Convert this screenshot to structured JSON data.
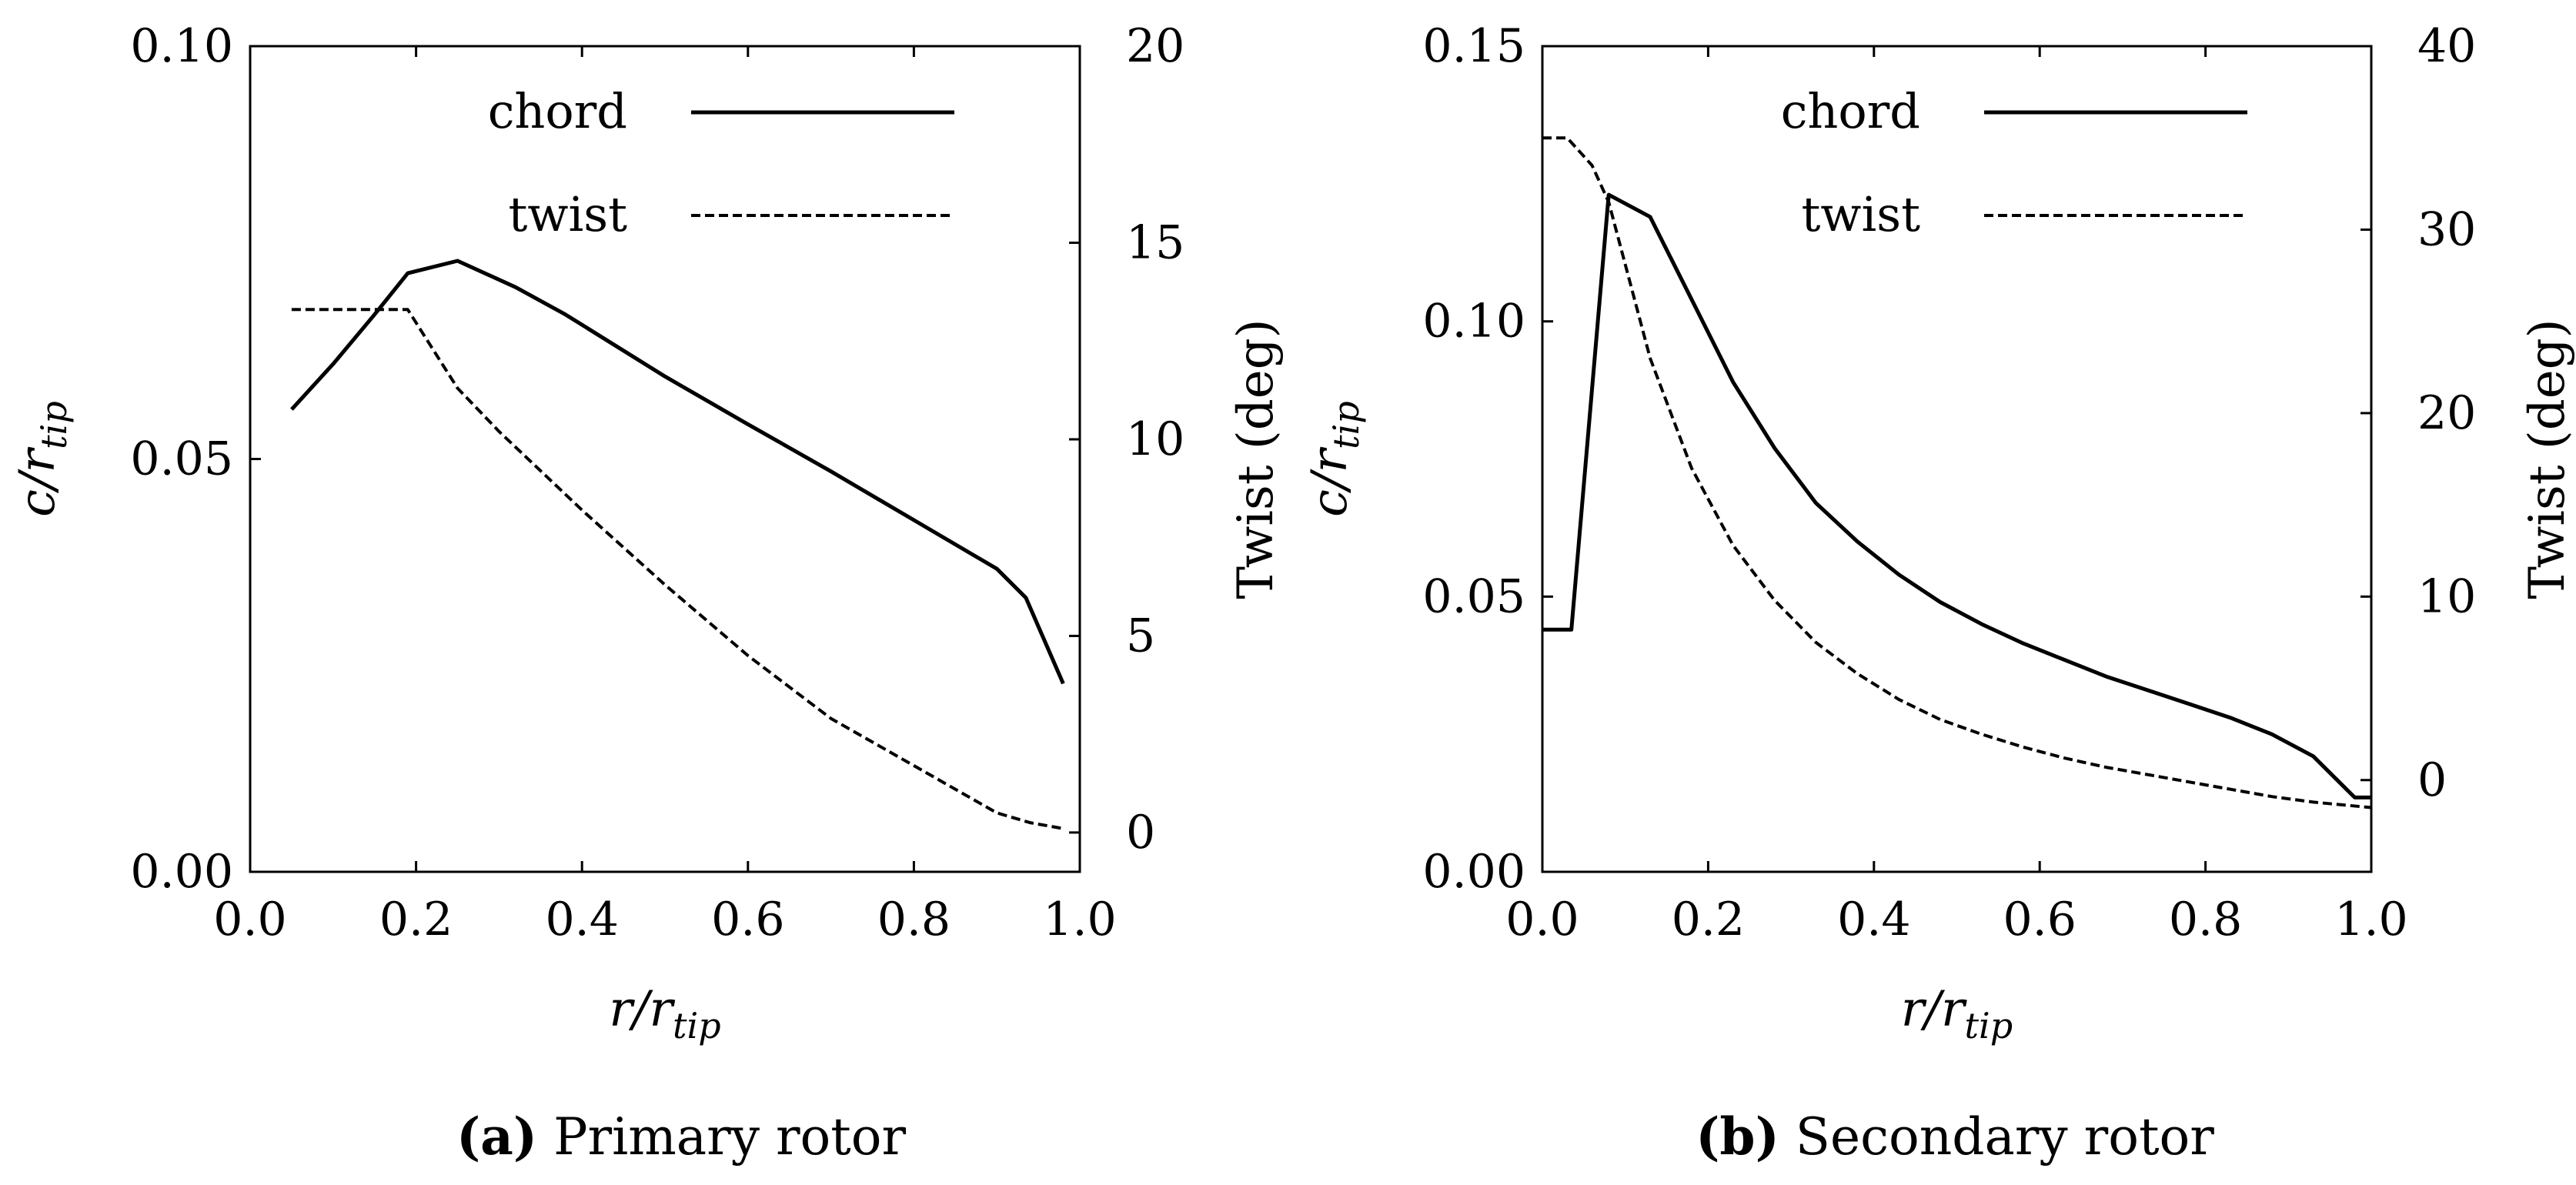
{
  "chart_data": [
    {
      "type": "line",
      "caption_tag": "(a)",
      "caption_text": "Primary rotor",
      "xlabel": "r/r_tip",
      "ylabel": "c/r_tip",
      "y2label": "Twist (deg)",
      "xlim": [
        0.0,
        1.0
      ],
      "ylim": [
        0.0,
        0.1
      ],
      "y2lim": [
        -1,
        20
      ],
      "xticks": [
        "0.0",
        "0.2",
        "0.4",
        "0.6",
        "0.8",
        "1.0"
      ],
      "yticks": [
        "0.00",
        "0.05",
        "0.10"
      ],
      "y2ticks": [
        "0",
        "5",
        "10",
        "15",
        "20"
      ],
      "legend_position": "top-right",
      "series": [
        {
          "name": "chord",
          "axis": "left",
          "style": "solid",
          "x": [
            0.05,
            0.1,
            0.15,
            0.19,
            0.25,
            0.32,
            0.38,
            0.5,
            0.6,
            0.7,
            0.8,
            0.9,
            0.935,
            0.98
          ],
          "y": [
            0.056,
            0.0615,
            0.0675,
            0.0725,
            0.074,
            0.0708,
            0.0675,
            0.06,
            0.0542,
            0.0485,
            0.0426,
            0.0367,
            0.0332,
            0.0228
          ]
        },
        {
          "name": "twist",
          "axis": "right",
          "style": "dashed",
          "x": [
            0.05,
            0.19,
            0.25,
            0.3,
            0.4,
            0.5,
            0.6,
            0.7,
            0.8,
            0.9,
            0.94,
            0.98
          ],
          "y": [
            13.3,
            13.3,
            11.3,
            10.2,
            8.2,
            6.3,
            4.5,
            2.9,
            1.7,
            0.5,
            0.25,
            0.1
          ]
        }
      ]
    },
    {
      "type": "line",
      "caption_tag": "(b)",
      "caption_text": "Secondary rotor",
      "xlabel": "r/r_tip",
      "ylabel": "c/r_tip",
      "y2label": "Twist (deg)",
      "xlim": [
        0.0,
        1.0
      ],
      "ylim": [
        0.0,
        0.15
      ],
      "y2lim": [
        -5,
        40
      ],
      "xticks": [
        "0.0",
        "0.2",
        "0.4",
        "0.6",
        "0.8",
        "1.0"
      ],
      "yticks": [
        "0.00",
        "0.05",
        "0.10",
        "0.15"
      ],
      "y2ticks": [
        "0",
        "10",
        "20",
        "30",
        "40"
      ],
      "legend_position": "top-right",
      "series": [
        {
          "name": "chord",
          "axis": "left",
          "style": "solid",
          "x": [
            0.0,
            0.035,
            0.08,
            0.13,
            0.18,
            0.23,
            0.28,
            0.33,
            0.38,
            0.43,
            0.48,
            0.53,
            0.58,
            0.63,
            0.68,
            0.73,
            0.78,
            0.83,
            0.88,
            0.93,
            0.98,
            1.0
          ],
          "y": [
            0.044,
            0.044,
            0.123,
            0.119,
            0.104,
            0.089,
            0.077,
            0.067,
            0.06,
            0.054,
            0.049,
            0.045,
            0.0415,
            0.0385,
            0.0355,
            0.033,
            0.0305,
            0.028,
            0.025,
            0.021,
            0.0135,
            0.0135
          ]
        },
        {
          "name": "twist",
          "axis": "right",
          "style": "dashed",
          "x": [
            0.0,
            0.03,
            0.06,
            0.08,
            0.13,
            0.18,
            0.23,
            0.28,
            0.33,
            0.38,
            0.43,
            0.48,
            0.53,
            0.58,
            0.63,
            0.68,
            0.73,
            0.78,
            0.83,
            0.88,
            0.93,
            1.0
          ],
          "y": [
            35,
            35,
            33.5,
            31.5,
            23,
            17,
            12.8,
            9.8,
            7.5,
            5.8,
            4.4,
            3.3,
            2.5,
            1.8,
            1.2,
            0.7,
            0.3,
            -0.1,
            -0.5,
            -0.9,
            -1.2,
            -1.5
          ]
        }
      ]
    }
  ]
}
